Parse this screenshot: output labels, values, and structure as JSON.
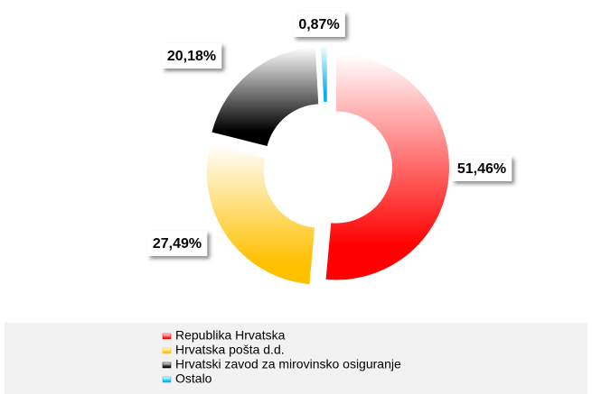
{
  "chart_data": {
    "type": "pie",
    "categories": [
      "Republika Hrvatska",
      "Hrvatska pošta d.d.",
      "Hrvatski zavod za mirovinsko osiguranje",
      "Ostalo"
    ],
    "values": [
      51.46,
      27.49,
      20.18,
      0.87
    ],
    "value_labels": [
      "51,46%",
      "27,49%",
      "20,18%",
      "0,87%"
    ],
    "colors": [
      "#ff0000",
      "#ffc000",
      "#000000",
      "#00b0f0"
    ],
    "donut": true,
    "legend": "bottom"
  }
}
